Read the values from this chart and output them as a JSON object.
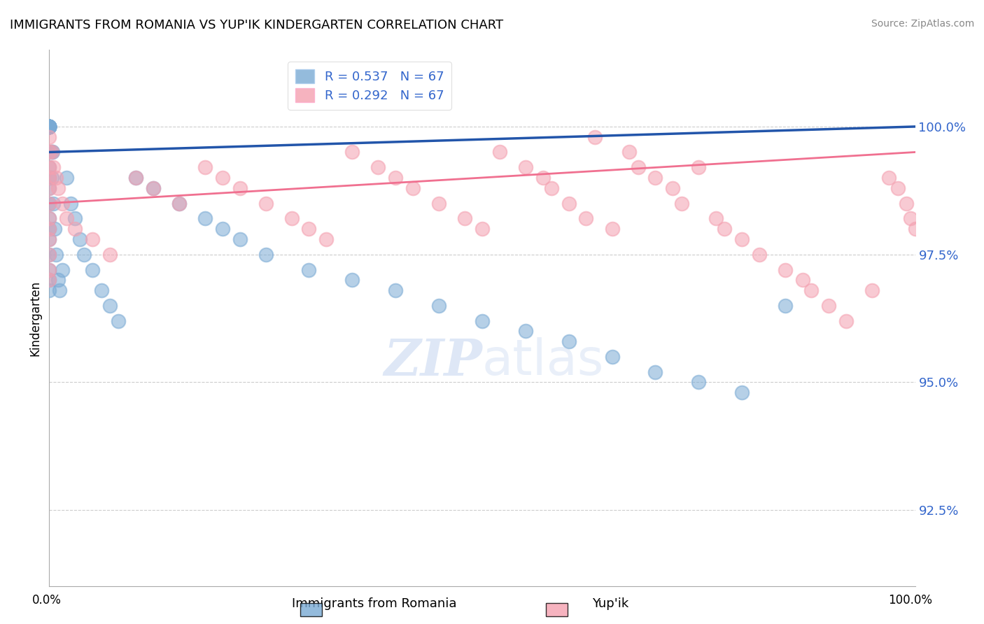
{
  "title": "IMMIGRANTS FROM ROMANIA VS YUP'IK KINDERGARTEN CORRELATION CHART",
  "source": "Source: ZipAtlas.com",
  "ylabel": "Kindergarten",
  "xlim": [
    0.0,
    100.0
  ],
  "ylim": [
    91.0,
    101.5
  ],
  "legend_blue_label": "R = 0.537   N = 67",
  "legend_pink_label": "R = 0.292   N = 67",
  "xlabel_bottom_left": "Immigrants from Romania",
  "xlabel_bottom_right": "Yup'ik",
  "blue_color": "#7aaad4",
  "pink_color": "#f4a0b0",
  "blue_line_color": "#2255aa",
  "pink_line_color": "#f07090",
  "background_color": "#ffffff",
  "grid_color": "#cccccc",
  "ytick_vals": [
    92.5,
    95.0,
    97.5,
    100.0
  ],
  "ytick_labels": [
    "92.5%",
    "95.0%",
    "97.5%",
    "100.0%"
  ],
  "watermark_zip": "ZIP",
  "watermark_atlas": "atlas",
  "romania_x": [
    0.0,
    0.0,
    0.0,
    0.0,
    0.0,
    0.0,
    0.0,
    0.0,
    0.0,
    0.0,
    0.0,
    0.0,
    0.0,
    0.0,
    0.0,
    0.0,
    0.0,
    0.0,
    0.0,
    0.0,
    0.0,
    0.0,
    0.0,
    0.0,
    0.0,
    0.0,
    0.0,
    0.0,
    0.0,
    0.0,
    0.3,
    0.3,
    0.4,
    0.5,
    0.6,
    0.8,
    1.0,
    1.2,
    1.5,
    2.0,
    2.5,
    3.0,
    3.5,
    4.0,
    5.0,
    6.0,
    7.0,
    8.0,
    10.0,
    12.0,
    15.0,
    18.0,
    20.0,
    22.0,
    25.0,
    30.0,
    35.0,
    40.0,
    45.0,
    50.0,
    55.0,
    60.0,
    65.0,
    70.0,
    75.0,
    80.0,
    85.0
  ],
  "romania_y": [
    100.0,
    100.0,
    100.0,
    100.0,
    100.0,
    100.0,
    100.0,
    100.0,
    100.0,
    100.0,
    100.0,
    100.0,
    100.0,
    100.0,
    100.0,
    100.0,
    100.0,
    100.0,
    99.5,
    99.2,
    99.0,
    98.8,
    98.5,
    98.2,
    98.0,
    97.8,
    97.5,
    97.2,
    97.0,
    96.8,
    99.5,
    99.0,
    99.5,
    98.5,
    98.0,
    97.5,
    97.0,
    96.8,
    97.2,
    99.0,
    98.5,
    98.2,
    97.8,
    97.5,
    97.2,
    96.8,
    96.5,
    96.2,
    99.0,
    98.8,
    98.5,
    98.2,
    98.0,
    97.8,
    97.5,
    97.2,
    97.0,
    96.8,
    96.5,
    96.2,
    96.0,
    95.8,
    95.5,
    95.2,
    95.0,
    94.8,
    96.5
  ],
  "yupik_x": [
    0.0,
    0.0,
    0.0,
    0.0,
    0.0,
    0.0,
    0.0,
    0.0,
    0.0,
    0.0,
    0.0,
    0.0,
    0.3,
    0.5,
    0.8,
    1.0,
    1.5,
    2.0,
    3.0,
    5.0,
    7.0,
    10.0,
    12.0,
    15.0,
    18.0,
    20.0,
    22.0,
    25.0,
    28.0,
    30.0,
    32.0,
    35.0,
    38.0,
    40.0,
    42.0,
    45.0,
    48.0,
    50.0,
    52.0,
    55.0,
    57.0,
    58.0,
    60.0,
    62.0,
    63.0,
    65.0,
    67.0,
    68.0,
    70.0,
    72.0,
    73.0,
    75.0,
    77.0,
    78.0,
    80.0,
    82.0,
    85.0,
    87.0,
    88.0,
    90.0,
    92.0,
    95.0,
    97.0,
    98.0,
    99.0,
    99.5,
    100.0
  ],
  "yupik_y": [
    99.8,
    99.5,
    99.2,
    99.0,
    98.8,
    98.5,
    98.2,
    98.0,
    97.8,
    97.5,
    97.2,
    97.0,
    99.5,
    99.2,
    99.0,
    98.8,
    98.5,
    98.2,
    98.0,
    97.8,
    97.5,
    99.0,
    98.8,
    98.5,
    99.2,
    99.0,
    98.8,
    98.5,
    98.2,
    98.0,
    97.8,
    99.5,
    99.2,
    99.0,
    98.8,
    98.5,
    98.2,
    98.0,
    99.5,
    99.2,
    99.0,
    98.8,
    98.5,
    98.2,
    99.8,
    98.0,
    99.5,
    99.2,
    99.0,
    98.8,
    98.5,
    99.2,
    98.2,
    98.0,
    97.8,
    97.5,
    97.2,
    97.0,
    96.8,
    96.5,
    96.2,
    96.8,
    99.0,
    98.8,
    98.5,
    98.2,
    98.0
  ],
  "blue_trend": [
    99.5,
    100.0
  ],
  "pink_trend": [
    98.5,
    99.5
  ],
  "blue_trend_x": [
    0.0,
    100.0
  ],
  "pink_trend_x": [
    0.0,
    100.0
  ]
}
